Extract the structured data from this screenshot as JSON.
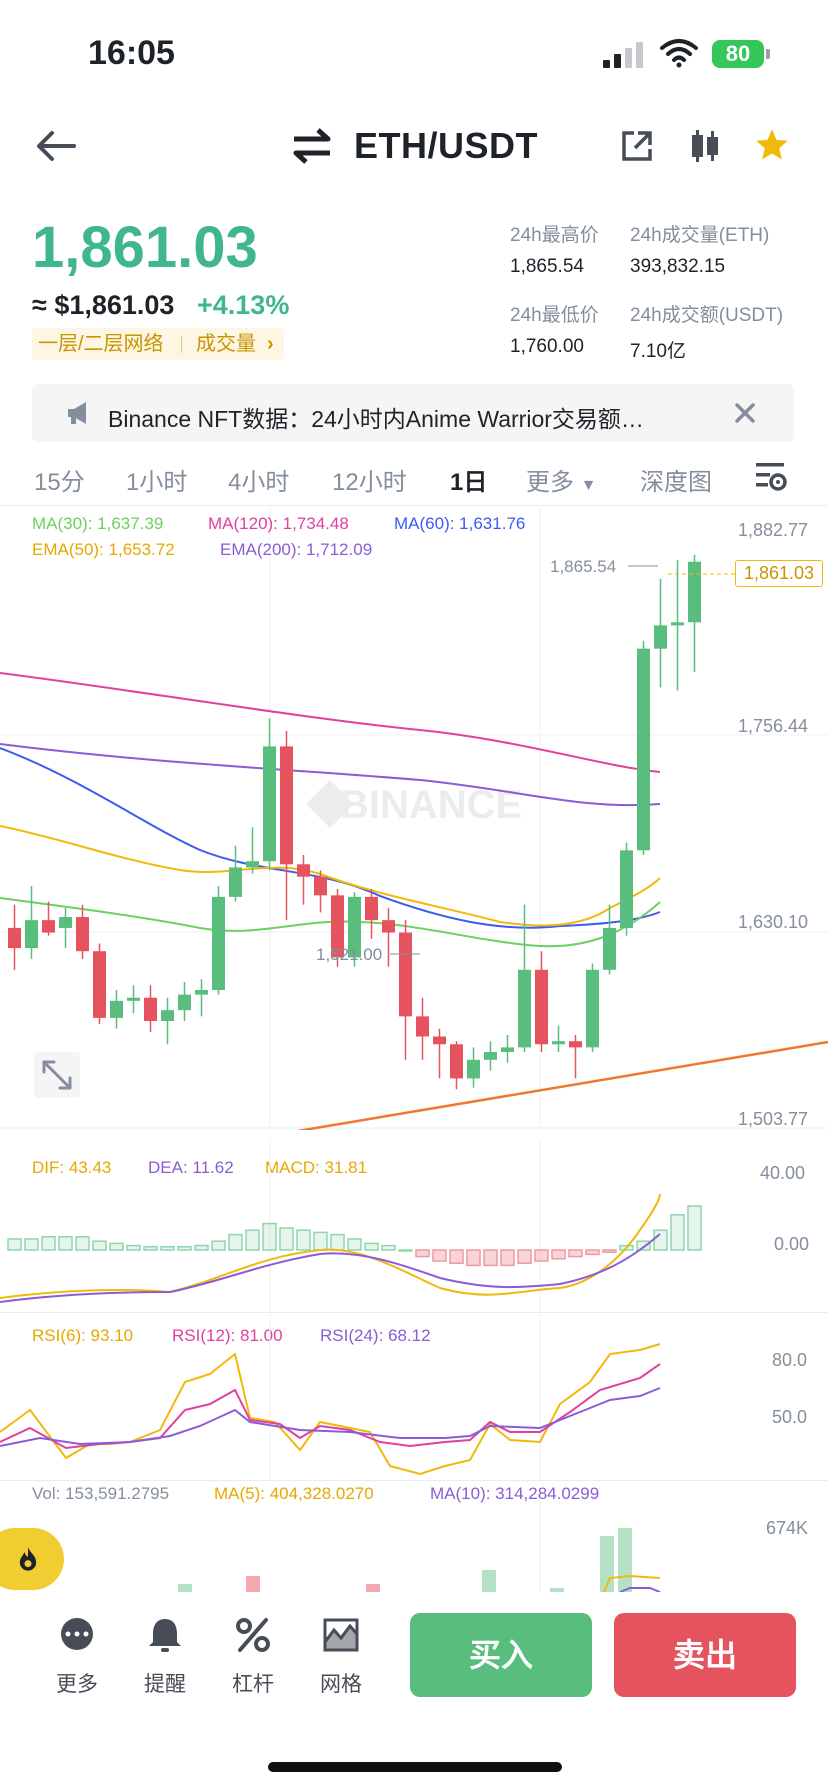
{
  "status_bar": {
    "time": "16:05",
    "battery": "80"
  },
  "header": {
    "pair": "ETH/USDT"
  },
  "price": {
    "last": "1,861.03",
    "fiat": "≈ $1,861.03",
    "change": "+4.13%",
    "network_label": "一层/二层网络",
    "volume_label": "成交量"
  },
  "stats": {
    "high_label": "24h最高价",
    "high_value": "1,865.54",
    "vol_eth_label": "24h成交量(ETH)",
    "vol_eth_value": "393,832.15",
    "low_label": "24h最低价",
    "low_value": "1,760.00",
    "vol_usdt_label": "24h成交额(USDT)",
    "vol_usdt_value": "7.10亿"
  },
  "notice": {
    "text": "Binance NFT数据：24小时内Anime Warrior交易额…"
  },
  "intervals": {
    "m15": "15分",
    "h1": "1小时",
    "h4": "4小时",
    "h12": "12小时",
    "d1": "1日",
    "more": "更多",
    "depth": "深度图"
  },
  "indicators": {
    "ma30": "MA(30): 1,637.39",
    "ma120": "MA(120): 1,734.48",
    "ma60": "MA(60): 1,631.76",
    "ema50": "EMA(50): 1,653.72",
    "ema200": "EMA(200): 1,712.09"
  },
  "price_axis": {
    "top": "1,882.77",
    "mid1": "1,756.44",
    "mid2": "1,630.10",
    "bottom": "1,503.77"
  },
  "chart_marks": {
    "high_mark": "1,865.54",
    "low_mark": "1,521.00",
    "current_tag": "1,861.03"
  },
  "watermark": "BINANCE",
  "macd": {
    "dif": "DIF: 43.43",
    "dea": "DEA: 11.62",
    "macd": "MACD: 31.81",
    "axis_top": "40.00",
    "axis_zero": "0.00"
  },
  "rsi": {
    "rsi6": "RSI(6): 93.10",
    "rsi12": "RSI(12): 81.00",
    "rsi24": "RSI(24): 68.12",
    "axis_80": "80.0",
    "axis_50": "50.0"
  },
  "volume": {
    "vol": "Vol: 153,591.2795",
    "ma5": "MA(5): 404,328.0270",
    "ma10": "MA(10): 314,284.0299",
    "axis_top": "674K"
  },
  "bottom_bar": {
    "more": "更多",
    "alert": "提醒",
    "leverage": "杠杆",
    "grid": "网格",
    "buy": "买入",
    "sell": "卖出"
  },
  "colors": {
    "up": "#58bd7d",
    "down": "#e5535f",
    "accent": "#f0b90b"
  },
  "chart_data": {
    "type": "candlestick",
    "candles": [
      {
        "o": 1625,
        "h": 1640,
        "l": 1598,
        "c": 1612
      },
      {
        "o": 1612,
        "h": 1652,
        "l": 1605,
        "c": 1630
      },
      {
        "o": 1630,
        "h": 1642,
        "l": 1620,
        "c": 1622
      },
      {
        "o": 1625,
        "h": 1638,
        "l": 1612,
        "c": 1632
      },
      {
        "o": 1632,
        "h": 1640,
        "l": 1605,
        "c": 1610
      },
      {
        "o": 1610,
        "h": 1615,
        "l": 1563,
        "c": 1567
      },
      {
        "o": 1567,
        "h": 1585,
        "l": 1560,
        "c": 1578
      },
      {
        "o": 1578,
        "h": 1588,
        "l": 1570,
        "c": 1580
      },
      {
        "o": 1580,
        "h": 1588,
        "l": 1558,
        "c": 1565
      },
      {
        "o": 1565,
        "h": 1580,
        "l": 1550,
        "c": 1572
      },
      {
        "o": 1572,
        "h": 1590,
        "l": 1565,
        "c": 1582
      },
      {
        "o": 1582,
        "h": 1592,
        "l": 1568,
        "c": 1585
      },
      {
        "o": 1585,
        "h": 1652,
        "l": 1582,
        "c": 1645
      },
      {
        "o": 1645,
        "h": 1678,
        "l": 1642,
        "c": 1664
      },
      {
        "o": 1664,
        "h": 1690,
        "l": 1660,
        "c": 1668
      },
      {
        "o": 1668,
        "h": 1760,
        "l": 1662,
        "c": 1742
      },
      {
        "o": 1742,
        "h": 1752,
        "l": 1630,
        "c": 1666
      },
      {
        "o": 1666,
        "h": 1672,
        "l": 1640,
        "c": 1658
      },
      {
        "o": 1658,
        "h": 1662,
        "l": 1635,
        "c": 1646
      },
      {
        "o": 1646,
        "h": 1650,
        "l": 1600,
        "c": 1606
      },
      {
        "o": 1606,
        "h": 1648,
        "l": 1600,
        "c": 1645
      },
      {
        "o": 1645,
        "h": 1650,
        "l": 1618,
        "c": 1630
      },
      {
        "o": 1630,
        "h": 1638,
        "l": 1600,
        "c": 1622
      },
      {
        "o": 1622,
        "h": 1630,
        "l": 1540,
        "c": 1568
      },
      {
        "o": 1568,
        "h": 1580,
        "l": 1540,
        "c": 1555
      },
      {
        "o": 1555,
        "h": 1560,
        "l": 1528,
        "c": 1550
      },
      {
        "o": 1550,
        "h": 1552,
        "l": 1521,
        "c": 1528
      },
      {
        "o": 1528,
        "h": 1548,
        "l": 1522,
        "c": 1540
      },
      {
        "o": 1540,
        "h": 1552,
        "l": 1533,
        "c": 1545
      },
      {
        "o": 1545,
        "h": 1556,
        "l": 1538,
        "c": 1548
      },
      {
        "o": 1548,
        "h": 1640,
        "l": 1545,
        "c": 1598
      },
      {
        "o": 1598,
        "h": 1610,
        "l": 1545,
        "c": 1550
      },
      {
        "o": 1550,
        "h": 1562,
        "l": 1545,
        "c": 1552
      },
      {
        "o": 1552,
        "h": 1556,
        "l": 1528,
        "c": 1548
      },
      {
        "o": 1548,
        "h": 1602,
        "l": 1545,
        "c": 1598
      },
      {
        "o": 1598,
        "h": 1640,
        "l": 1595,
        "c": 1625
      },
      {
        "o": 1625,
        "h": 1680,
        "l": 1620,
        "c": 1675
      },
      {
        "o": 1675,
        "h": 1810,
        "l": 1672,
        "c": 1805
      },
      {
        "o": 1805,
        "h": 1850,
        "l": 1780,
        "c": 1820
      },
      {
        "o": 1820,
        "h": 1862,
        "l": 1778,
        "c": 1822
      },
      {
        "o": 1822,
        "h": 1865.54,
        "l": 1790,
        "c": 1861.03
      }
    ]
  }
}
